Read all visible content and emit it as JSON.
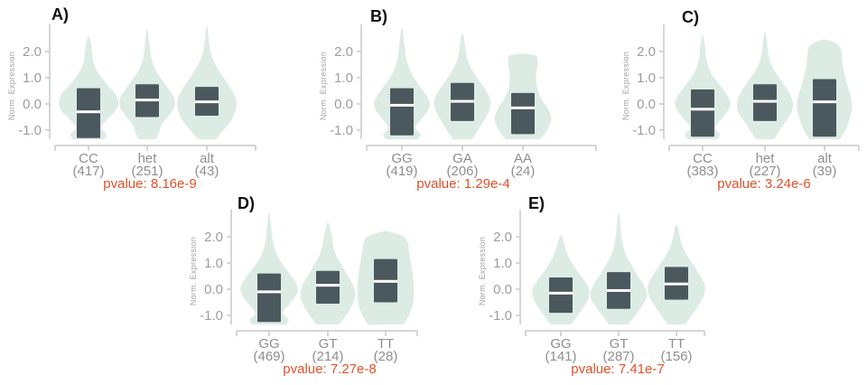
{
  "figure": {
    "background": "#ffffff"
  },
  "chart_data": {
    "type": "violin",
    "ylabel": "Norm. Expression",
    "yticks": [
      "2.0",
      "1.0",
      "0.0",
      "-1.0"
    ],
    "ytick_values": [
      2,
      1,
      0,
      -1
    ],
    "ylim": [
      -1.35,
      3.0
    ],
    "colors": {
      "violin_fill": "#d6e9df",
      "box_fill": "#4b585d",
      "median_line": "#ffffff",
      "axis_line": "#c8c8c8",
      "tick_text": "#9d9d9d",
      "ylabel_text": "#a3a3a3",
      "category_text": "#8f8f8f",
      "pvalue_text": "#e2502a",
      "panel_label_text": "#111111"
    },
    "panels": [
      {
        "label": "A)",
        "pvalue_text": "pvalue: 8.16e-9",
        "groups": [
          {
            "category": "CC",
            "count_label": "(417)",
            "box": [
              -1.3,
              -0.3,
              0.6
            ],
            "violin_profile": [
              [
                -1.35,
                0.52
              ],
              [
                -1.15,
                0.6
              ],
              [
                -0.9,
                0.42
              ],
              [
                -0.6,
                0.62
              ],
              [
                -0.3,
                0.88
              ],
              [
                0,
                1
              ],
              [
                0.35,
                0.92
              ],
              [
                0.7,
                0.66
              ],
              [
                1,
                0.44
              ],
              [
                1.3,
                0.27
              ],
              [
                1.6,
                0.16
              ],
              [
                1.95,
                0.12
              ],
              [
                2.25,
                0.09
              ],
              [
                2.55,
                0.03
              ]
            ]
          },
          {
            "category": "het",
            "count_label": "(251)",
            "box": [
              -0.5,
              0.15,
              0.75
            ],
            "violin_profile": [
              [
                -1.35,
                0.28
              ],
              [
                -1.1,
                0.4
              ],
              [
                -0.8,
                0.48
              ],
              [
                -0.45,
                0.72
              ],
              [
                -0.1,
                0.92
              ],
              [
                0.25,
                0.9
              ],
              [
                0.6,
                0.7
              ],
              [
                0.95,
                0.48
              ],
              [
                1.3,
                0.28
              ],
              [
                1.65,
                0.16
              ],
              [
                2,
                0.1
              ],
              [
                2.35,
                0.07
              ],
              [
                2.8,
                0.02
              ]
            ]
          },
          {
            "category": "alt",
            "count_label": "(43)",
            "box": [
              -0.45,
              0.08,
              0.65
            ],
            "violin_profile": [
              [
                -1.35,
                0.3
              ],
              [
                -1.05,
                0.52
              ],
              [
                -0.7,
                0.78
              ],
              [
                -0.3,
                0.95
              ],
              [
                0.1,
                1
              ],
              [
                0.5,
                0.85
              ],
              [
                0.9,
                0.62
              ],
              [
                1.25,
                0.42
              ],
              [
                1.6,
                0.25
              ],
              [
                1.95,
                0.13
              ],
              [
                2.3,
                0.08
              ],
              [
                2.9,
                0.02
              ]
            ]
          }
        ]
      },
      {
        "label": "B)",
        "pvalue_text": "pvalue: 1.29e-4",
        "groups": [
          {
            "category": "GG",
            "count_label": "(419)",
            "box": [
              -1.2,
              -0.05,
              0.6
            ],
            "violin_profile": [
              [
                -1.35,
                0.55
              ],
              [
                -1.15,
                0.62
              ],
              [
                -0.9,
                0.45
              ],
              [
                -0.55,
                0.68
              ],
              [
                -0.2,
                0.9
              ],
              [
                0.1,
                0.92
              ],
              [
                0.45,
                0.75
              ],
              [
                0.8,
                0.52
              ],
              [
                1.15,
                0.33
              ],
              [
                1.5,
                0.2
              ],
              [
                1.85,
                0.13
              ],
              [
                2.2,
                0.09
              ],
              [
                2.85,
                0.02
              ]
            ]
          },
          {
            "category": "GA",
            "count_label": "(206)",
            "box": [
              -0.65,
              0.1,
              0.8
            ],
            "violin_profile": [
              [
                -1.35,
                0.32
              ],
              [
                -1.05,
                0.5
              ],
              [
                -0.7,
                0.68
              ],
              [
                -0.3,
                0.88
              ],
              [
                0.1,
                0.95
              ],
              [
                0.5,
                0.8
              ],
              [
                0.9,
                0.55
              ],
              [
                1.25,
                0.35
              ],
              [
                1.6,
                0.2
              ],
              [
                1.95,
                0.12
              ],
              [
                2.3,
                0.08
              ],
              [
                2.65,
                0.03
              ]
            ]
          },
          {
            "category": "AA",
            "count_label": "(24)",
            "box": [
              -1.15,
              -0.15,
              0.42
            ],
            "violin_profile": [
              [
                -1.35,
                0.58
              ],
              [
                -1.05,
                0.78
              ],
              [
                -0.6,
                0.95
              ],
              [
                -0.2,
                0.85
              ],
              [
                0.2,
                0.62
              ],
              [
                0.6,
                0.48
              ],
              [
                1,
                0.44
              ],
              [
                1.4,
                0.48
              ],
              [
                1.7,
                0.5
              ],
              [
                1.85,
                0.42
              ],
              [
                1.92,
                0.05
              ]
            ]
          }
        ]
      },
      {
        "label": "C)",
        "pvalue_text": "pvalue: 3.24e-6",
        "groups": [
          {
            "category": "CC",
            "count_label": "(383)",
            "box": [
              -1.25,
              -0.2,
              0.55
            ],
            "violin_profile": [
              [
                -1.35,
                0.5
              ],
              [
                -1.15,
                0.58
              ],
              [
                -0.9,
                0.42
              ],
              [
                -0.55,
                0.65
              ],
              [
                -0.2,
                0.88
              ],
              [
                0.1,
                0.92
              ],
              [
                0.45,
                0.75
              ],
              [
                0.8,
                0.52
              ],
              [
                1.15,
                0.3
              ],
              [
                1.5,
                0.17
              ],
              [
                1.85,
                0.11
              ],
              [
                2.2,
                0.08
              ],
              [
                2.6,
                0.02
              ]
            ]
          },
          {
            "category": "het",
            "count_label": "(227)",
            "box": [
              -0.65,
              0.1,
              0.75
            ],
            "violin_profile": [
              [
                -1.35,
                0.3
              ],
              [
                -1.05,
                0.48
              ],
              [
                -0.7,
                0.68
              ],
              [
                -0.3,
                0.9
              ],
              [
                0.1,
                0.93
              ],
              [
                0.5,
                0.78
              ],
              [
                0.9,
                0.55
              ],
              [
                1.25,
                0.33
              ],
              [
                1.6,
                0.18
              ],
              [
                1.95,
                0.11
              ],
              [
                2.3,
                0.07
              ],
              [
                2.7,
                0.02
              ]
            ]
          },
          {
            "category": "alt",
            "count_label": "(39)",
            "box": [
              -1.25,
              0.08,
              0.95
            ],
            "violin_profile": [
              [
                -1.35,
                0.5
              ],
              [
                -1.05,
                0.68
              ],
              [
                -0.65,
                0.82
              ],
              [
                -0.2,
                0.92
              ],
              [
                0.2,
                0.9
              ],
              [
                0.6,
                0.8
              ],
              [
                1,
                0.7
              ],
              [
                1.4,
                0.62
              ],
              [
                1.8,
                0.58
              ],
              [
                2.1,
                0.55
              ],
              [
                2.3,
                0.4
              ],
              [
                2.45,
                0.05
              ]
            ]
          }
        ]
      },
      {
        "label": "D)",
        "pvalue_text": "pvalue: 7.27e-8",
        "groups": [
          {
            "category": "GG",
            "count_label": "(469)",
            "box": [
              -1.25,
              -0.1,
              0.6
            ],
            "violin_profile": [
              [
                -1.35,
                0.58
              ],
              [
                -1.15,
                0.65
              ],
              [
                -0.9,
                0.46
              ],
              [
                -0.55,
                0.7
              ],
              [
                -0.2,
                0.92
              ],
              [
                0.1,
                0.95
              ],
              [
                0.45,
                0.78
              ],
              [
                0.8,
                0.55
              ],
              [
                1.15,
                0.33
              ],
              [
                1.5,
                0.2
              ],
              [
                1.85,
                0.12
              ],
              [
                2.2,
                0.08
              ],
              [
                2.85,
                0.02
              ]
            ]
          },
          {
            "category": "GT",
            "count_label": "(214)",
            "box": [
              -0.55,
              0.15,
              0.7
            ],
            "violin_profile": [
              [
                -1.35,
                0.38
              ],
              [
                -1.05,
                0.58
              ],
              [
                -0.65,
                0.8
              ],
              [
                -0.25,
                0.92
              ],
              [
                0.15,
                0.85
              ],
              [
                0.55,
                0.65
              ],
              [
                0.95,
                0.45
              ],
              [
                1.3,
                0.28
              ],
              [
                1.65,
                0.18
              ],
              [
                1.95,
                0.15
              ],
              [
                2.2,
                0.1
              ],
              [
                2.5,
                0.03
              ]
            ]
          },
          {
            "category": "TT",
            "count_label": "(28)",
            "box": [
              -0.5,
              0.3,
              1.15
            ],
            "violin_profile": [
              [
                -1.35,
                0.6
              ],
              [
                -1,
                0.78
              ],
              [
                -0.55,
                0.92
              ],
              [
                -0.1,
                0.95
              ],
              [
                0.35,
                0.93
              ],
              [
                0.8,
                0.88
              ],
              [
                1.2,
                0.82
              ],
              [
                1.55,
                0.78
              ],
              [
                1.85,
                0.72
              ],
              [
                2.05,
                0.55
              ],
              [
                2.2,
                0.1
              ]
            ]
          }
        ]
      },
      {
        "label": "E)",
        "pvalue_text": "pvalue: 7.41e-7",
        "groups": [
          {
            "category": "GG",
            "count_label": "(141)",
            "box": [
              -0.9,
              -0.15,
              0.45
            ],
            "violin_profile": [
              [
                -1.35,
                0.35
              ],
              [
                -1.1,
                0.5
              ],
              [
                -0.75,
                0.72
              ],
              [
                -0.35,
                0.92
              ],
              [
                0,
                0.95
              ],
              [
                0.35,
                0.78
              ],
              [
                0.7,
                0.55
              ],
              [
                1.05,
                0.35
              ],
              [
                1.4,
                0.2
              ],
              [
                1.7,
                0.12
              ],
              [
                2,
                0.04
              ]
            ]
          },
          {
            "category": "GT",
            "count_label": "(287)",
            "box": [
              -0.75,
              -0.05,
              0.65
            ],
            "violin_profile": [
              [
                -1.35,
                0.32
              ],
              [
                -1.05,
                0.52
              ],
              [
                -0.65,
                0.78
              ],
              [
                -0.25,
                0.95
              ],
              [
                0.15,
                0.85
              ],
              [
                0.55,
                0.62
              ],
              [
                0.95,
                0.42
              ],
              [
                1.3,
                0.25
              ],
              [
                1.65,
                0.15
              ],
              [
                2,
                0.1
              ],
              [
                2.4,
                0.06
              ],
              [
                2.85,
                0.02
              ]
            ]
          },
          {
            "category": "TT",
            "count_label": "(156)",
            "box": [
              -0.4,
              0.2,
              0.85
            ],
            "violin_profile": [
              [
                -1.35,
                0.3
              ],
              [
                -1.05,
                0.48
              ],
              [
                -0.65,
                0.72
              ],
              [
                -0.25,
                0.92
              ],
              [
                0.15,
                0.95
              ],
              [
                0.55,
                0.78
              ],
              [
                0.95,
                0.55
              ],
              [
                1.3,
                0.35
              ],
              [
                1.65,
                0.2
              ],
              [
                1.95,
                0.12
              ],
              [
                2.4,
                0.04
              ]
            ]
          }
        ]
      }
    ]
  }
}
